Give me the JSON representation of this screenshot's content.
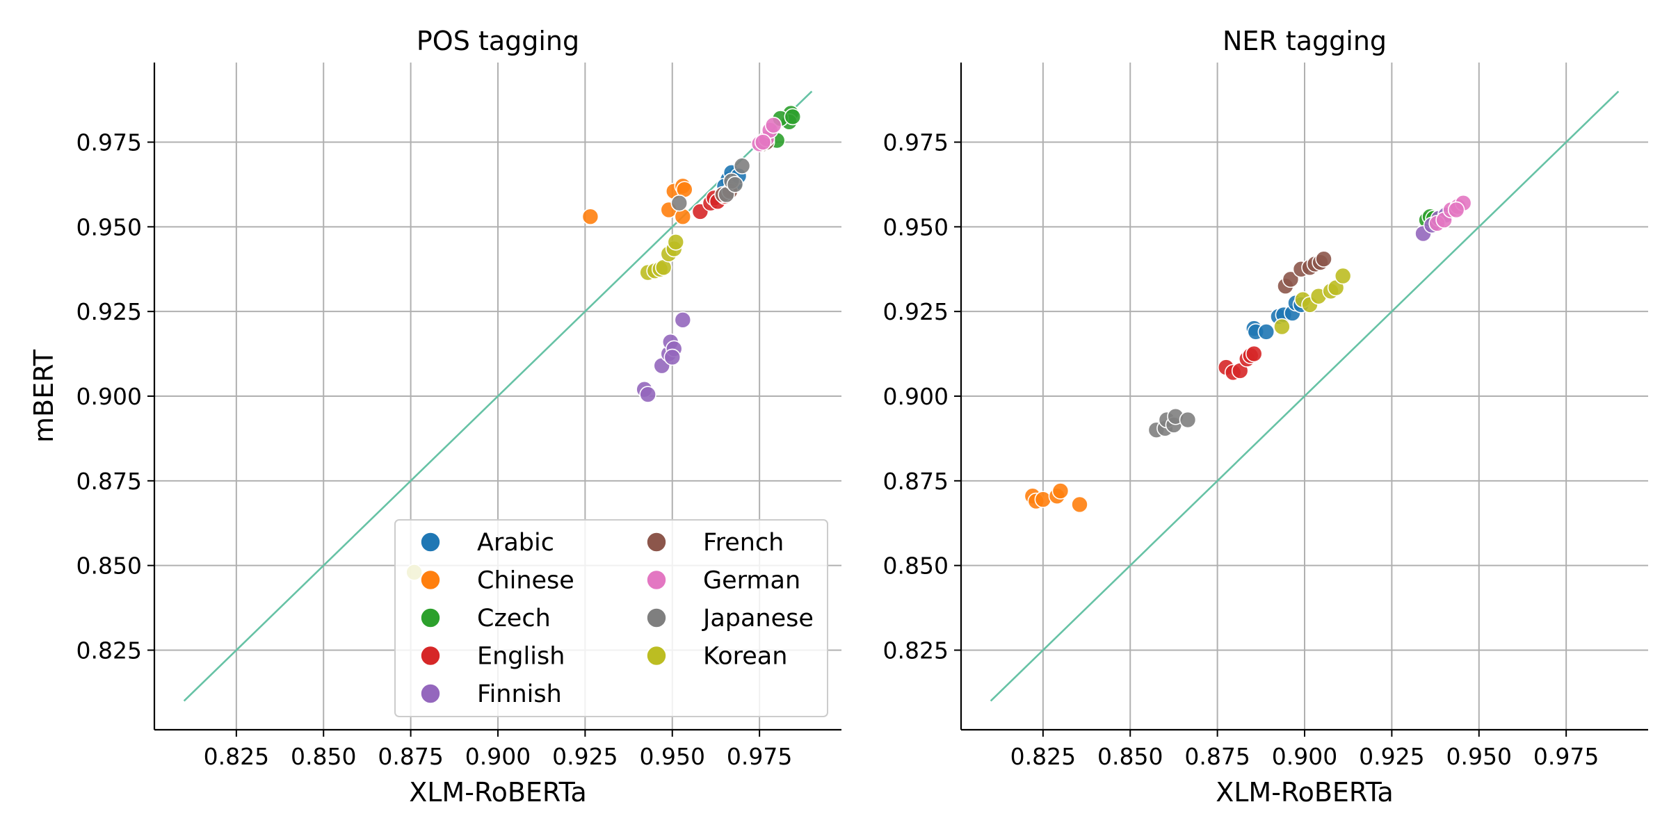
{
  "chart_data": [
    {
      "type": "scatter",
      "title": "POS tagging",
      "xlabel": "XLM-RoBERTa",
      "ylabel": "mBERT",
      "xlim": [
        0.8015,
        0.9985
      ],
      "ylim": [
        0.8015,
        0.9985
      ],
      "xticks": [
        "0.825",
        "0.850",
        "0.875",
        "0.900",
        "0.925",
        "0.950",
        "0.975"
      ],
      "yticks": [
        "0.825",
        "0.850",
        "0.875",
        "0.900",
        "0.925",
        "0.950",
        "0.975"
      ],
      "grid": true,
      "reference_line": {
        "x": [
          0.81,
          0.99
        ],
        "y": [
          0.81,
          0.99
        ],
        "color": "#66c2a5"
      },
      "legend": {
        "placement": "lower-right",
        "columns": 2
      },
      "series": [
        {
          "name": "Arabic",
          "color": "#1f77b4",
          "points": [
            [
              0.966,
              0.964
            ],
            [
              0.967,
              0.966
            ],
            [
              0.968,
              0.963
            ],
            [
              0.965,
              0.962
            ],
            [
              0.969,
              0.965
            ]
          ]
        },
        {
          "name": "Chinese",
          "color": "#ff7f0e",
          "points": [
            [
              0.9265,
              0.953
            ],
            [
              0.949,
              0.955
            ],
            [
              0.9505,
              0.9605
            ],
            [
              0.953,
              0.953
            ],
            [
              0.953,
              0.962
            ],
            [
              0.9535,
              0.961
            ]
          ]
        },
        {
          "name": "Czech",
          "color": "#2ca02c",
          "points": [
            [
              0.984,
              0.9835
            ],
            [
              0.9835,
              0.981
            ],
            [
              0.981,
              0.982
            ],
            [
              0.98,
              0.9755
            ],
            [
              0.9845,
              0.9825
            ]
          ]
        },
        {
          "name": "English",
          "color": "#d62728",
          "points": [
            [
              0.958,
              0.9545
            ],
            [
              0.961,
              0.957
            ],
            [
              0.962,
              0.9585
            ],
            [
              0.963,
              0.9575
            ],
            [
              0.965,
              0.959
            ]
          ]
        },
        {
          "name": "Finnish",
          "color": "#9467bd",
          "points": [
            [
              0.942,
              0.902
            ],
            [
              0.943,
              0.9005
            ],
            [
              0.947,
              0.909
            ],
            [
              0.949,
              0.9125
            ],
            [
              0.9495,
              0.916
            ],
            [
              0.9505,
              0.914
            ],
            [
              0.95,
              0.9115
            ],
            [
              0.953,
              0.9225
            ]
          ]
        },
        {
          "name": "French",
          "color": "#8c564b",
          "points": [
            [
              0.9645,
              0.9595
            ],
            [
              0.9665,
              0.9605
            ],
            [
              0.976,
              0.9745
            ],
            [
              0.977,
              0.975
            ]
          ]
        },
        {
          "name": "German",
          "color": "#e377c2",
          "points": [
            [
              0.975,
              0.9745
            ],
            [
              0.977,
              0.976
            ],
            [
              0.978,
              0.9785
            ],
            [
              0.979,
              0.98
            ],
            [
              0.976,
              0.975
            ]
          ]
        },
        {
          "name": "Japanese",
          "color": "#7f7f7f",
          "points": [
            [
              0.952,
              0.957
            ],
            [
              0.9655,
              0.9595
            ],
            [
              0.967,
              0.9635
            ],
            [
              0.97,
              0.968
            ],
            [
              0.968,
              0.9625
            ]
          ]
        },
        {
          "name": "Korean",
          "color": "#bcbd22",
          "points": [
            [
              0.943,
              0.9365
            ],
            [
              0.945,
              0.937
            ],
            [
              0.9465,
              0.9375
            ],
            [
              0.9475,
              0.938
            ],
            [
              0.949,
              0.942
            ],
            [
              0.9505,
              0.9435
            ],
            [
              0.951,
              0.9455
            ],
            [
              0.876,
              0.848
            ]
          ]
        }
      ]
    },
    {
      "type": "scatter",
      "title": "NER tagging",
      "xlabel": "XLM-RoBERTa",
      "ylabel": "",
      "xlim": [
        0.8015,
        0.9985
      ],
      "ylim": [
        0.8015,
        0.9985
      ],
      "xticks": [
        "0.825",
        "0.850",
        "0.875",
        "0.900",
        "0.925",
        "0.950",
        "0.975"
      ],
      "yticks": [
        "0.825",
        "0.850",
        "0.875",
        "0.900",
        "0.925",
        "0.950",
        "0.975"
      ],
      "grid": true,
      "reference_line": {
        "x": [
          0.81,
          0.99
        ],
        "y": [
          0.81,
          0.99
        ],
        "color": "#66c2a5"
      },
      "series": [
        {
          "name": "Arabic",
          "color": "#1f77b4",
          "points": [
            [
              0.8855,
              0.92
            ],
            [
              0.886,
              0.919
            ],
            [
              0.889,
              0.919
            ],
            [
              0.8925,
              0.9235
            ],
            [
              0.894,
              0.924
            ],
            [
              0.8965,
              0.9245
            ],
            [
              0.8975,
              0.9275
            ],
            [
              0.899,
              0.927
            ]
          ]
        },
        {
          "name": "Chinese",
          "color": "#ff7f0e",
          "points": [
            [
              0.822,
              0.8705
            ],
            [
              0.823,
              0.869
            ],
            [
              0.825,
              0.8695
            ],
            [
              0.829,
              0.8705
            ],
            [
              0.83,
              0.872
            ],
            [
              0.8355,
              0.868
            ]
          ]
        },
        {
          "name": "Czech",
          "color": "#2ca02c",
          "points": [
            [
              0.935,
              0.952
            ],
            [
              0.936,
              0.953
            ],
            [
              0.937,
              0.9525
            ]
          ]
        },
        {
          "name": "English",
          "color": "#d62728",
          "points": [
            [
              0.8775,
              0.9085
            ],
            [
              0.8795,
              0.907
            ],
            [
              0.8815,
              0.9075
            ],
            [
              0.8835,
              0.911
            ],
            [
              0.8845,
              0.912
            ],
            [
              0.8855,
              0.9125
            ]
          ]
        },
        {
          "name": "Finnish",
          "color": "#9467bd",
          "points": [
            [
              0.934,
              0.948
            ],
            [
              0.9365,
              0.9505
            ],
            [
              0.9385,
              0.9525
            ],
            [
              0.9405,
              0.9535
            ]
          ]
        },
        {
          "name": "French",
          "color": "#8c564b",
          "points": [
            [
              0.8945,
              0.9325
            ],
            [
              0.896,
              0.9345
            ],
            [
              0.899,
              0.9375
            ],
            [
              0.9015,
              0.938
            ],
            [
              0.903,
              0.939
            ],
            [
              0.9045,
              0.9395
            ],
            [
              0.9055,
              0.9405
            ]
          ]
        },
        {
          "name": "German",
          "color": "#e377c2",
          "points": [
            [
              0.938,
              0.951
            ],
            [
              0.94,
              0.952
            ],
            [
              0.942,
              0.955
            ],
            [
              0.944,
              0.956
            ],
            [
              0.9455,
              0.957
            ],
            [
              0.9435,
              0.955
            ]
          ]
        },
        {
          "name": "Japanese",
          "color": "#7f7f7f",
          "points": [
            [
              0.8575,
              0.89
            ],
            [
              0.86,
              0.8905
            ],
            [
              0.8605,
              0.893
            ],
            [
              0.8625,
              0.8915
            ],
            [
              0.863,
              0.894
            ],
            [
              0.8665,
              0.893
            ]
          ]
        },
        {
          "name": "Korean",
          "color": "#bcbd22",
          "points": [
            [
              0.8935,
              0.9205
            ],
            [
              0.8995,
              0.9285
            ],
            [
              0.9015,
              0.927
            ],
            [
              0.904,
              0.9295
            ],
            [
              0.9075,
              0.931
            ],
            [
              0.909,
              0.932
            ],
            [
              0.911,
              0.9355
            ]
          ]
        }
      ]
    }
  ],
  "legend": {
    "entries": [
      "Arabic",
      "Chinese",
      "Czech",
      "English",
      "Finnish",
      "French",
      "German",
      "Japanese",
      "Korean"
    ],
    "colors": [
      "#1f77b4",
      "#ff7f0e",
      "#2ca02c",
      "#d62728",
      "#9467bd",
      "#8c564b",
      "#e377c2",
      "#7f7f7f",
      "#bcbd22"
    ]
  }
}
